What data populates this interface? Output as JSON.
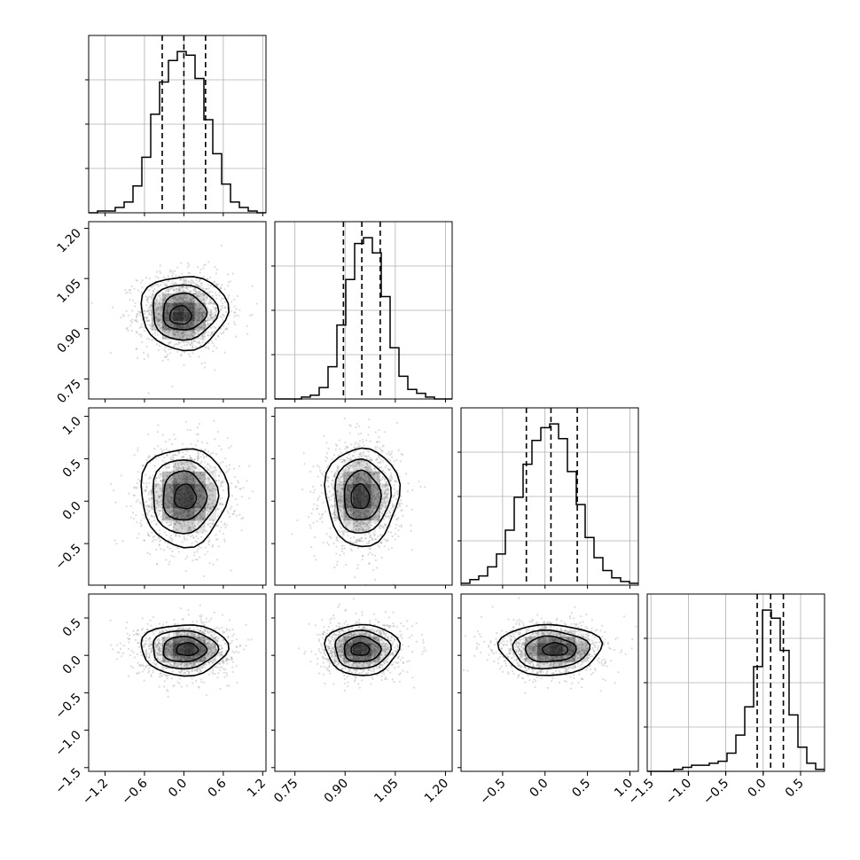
{
  "chart_data": {
    "type": "corner",
    "title": "",
    "parameters": 4,
    "axis_ranges": [
      [
        -1.45,
        1.25
      ],
      [
        0.69,
        1.22
      ],
      [
        -0.99,
        1.1
      ],
      [
        -1.55,
        0.82
      ]
    ],
    "ticks": [
      {
        "values": [
          -1.2,
          -0.6,
          0.0,
          0.6,
          1.2
        ],
        "labels": [
          "−1.2",
          "−0.6",
          "0.0",
          "0.6",
          "1.2"
        ]
      },
      {
        "values": [
          0.75,
          0.9,
          1.05,
          1.2
        ],
        "labels": [
          "0.75",
          "0.90",
          "1.05",
          "1.20"
        ]
      },
      {
        "values": [
          -0.5,
          0.0,
          0.5,
          1.0
        ],
        "labels": [
          "−0.5",
          "0.0",
          "0.5",
          "1.0"
        ]
      },
      {
        "values": [
          -1.5,
          -1.0,
          -0.5,
          0.0,
          0.5
        ],
        "labels": [
          "−1.5",
          "−1.0",
          "−0.5",
          "0.0",
          "0.5"
        ]
      }
    ],
    "histograms": [
      {
        "bin_edges": [
          -1.45,
          -1.315,
          -1.18,
          -1.045,
          -0.91,
          -0.775,
          -0.64,
          -0.505,
          -0.37,
          -0.235,
          -0.1,
          0.035,
          0.17,
          0.305,
          0.44,
          0.575,
          0.71,
          0.845,
          0.98,
          1.115,
          1.25
        ],
        "counts": [
          0,
          1,
          1,
          3,
          6,
          15,
          31,
          55,
          73,
          85,
          90,
          88,
          75,
          52,
          33,
          16,
          6,
          3,
          1,
          0
        ],
        "quantiles": [
          -0.33,
          0.0,
          0.33
        ]
      },
      {
        "bin_edges": [
          0.69,
          0.7165,
          0.743,
          0.7695,
          0.796,
          0.8225,
          0.849,
          0.8755,
          0.902,
          0.9285,
          0.955,
          0.9815,
          1.008,
          1.0345,
          1.061,
          1.0875,
          1.114,
          1.1405,
          1.167,
          1.1935,
          1.22
        ],
        "counts": [
          0,
          0,
          0,
          1,
          2,
          6,
          17,
          39,
          63,
          82,
          85,
          77,
          54,
          27,
          12,
          5,
          3,
          1,
          0,
          0
        ],
        "quantiles": [
          0.895,
          0.95,
          1.005
        ]
      },
      {
        "bin_edges": [
          -0.99,
          -0.8855,
          -0.781,
          -0.6765,
          -0.572,
          -0.4675,
          -0.363,
          -0.2585,
          -0.154,
          -0.0495,
          0.055,
          0.1595,
          0.264,
          0.3685,
          0.473,
          0.5775,
          0.682,
          0.7865,
          0.891,
          0.9955,
          1.1
        ],
        "counts": [
          1,
          3,
          5,
          10,
          17,
          30,
          48,
          66,
          79,
          86,
          88,
          80,
          62,
          44,
          26,
          15,
          8,
          4,
          2,
          1
        ],
        "quantiles": [
          -0.22,
          0.07,
          0.38
        ]
      },
      {
        "bin_edges": [
          -1.55,
          -1.4315,
          -1.313,
          -1.1945,
          -1.076,
          -0.9575,
          -0.839,
          -0.7205,
          -0.602,
          -0.4835,
          -0.365,
          -0.2465,
          -0.128,
          -0.0095,
          0.109,
          0.2275,
          0.346,
          0.4645,
          0.583,
          0.7015,
          0.82
        ],
        "counts": [
          0,
          0,
          0,
          1,
          2,
          3,
          3,
          4,
          5,
          9,
          18,
          32,
          52,
          80,
          76,
          60,
          28,
          12,
          4,
          1
        ],
        "quantiles": [
          -0.08,
          0.1,
          0.27
        ]
      }
    ],
    "pairs": [
      {
        "row": 1,
        "col": 0,
        "center": [
          0.0,
          0.95
        ],
        "spread": [
          0.33,
          0.055
        ],
        "peak": [
          -0.05,
          0.94
        ]
      },
      {
        "row": 2,
        "col": 0,
        "center": [
          0.0,
          0.06
        ],
        "spread": [
          0.33,
          0.29
        ],
        "peak": [
          0.02,
          0.05
        ]
      },
      {
        "row": 2,
        "col": 1,
        "center": [
          0.95,
          0.06
        ],
        "spread": [
          0.055,
          0.29
        ],
        "peak": [
          0.945,
          0.05
        ]
      },
      {
        "row": 3,
        "col": 0,
        "center": [
          0.0,
          0.08
        ],
        "spread": [
          0.33,
          0.17
        ],
        "peak": [
          0.05,
          0.08
        ]
      },
      {
        "row": 3,
        "col": 1,
        "center": [
          0.95,
          0.08
        ],
        "spread": [
          0.055,
          0.17
        ],
        "peak": [
          0.945,
          0.08
        ]
      },
      {
        "row": 3,
        "col": 2,
        "center": [
          0.06,
          0.08
        ],
        "spread": [
          0.3,
          0.17
        ],
        "peak": [
          0.12,
          0.08
        ]
      }
    ],
    "contour_levels_sigma": [
      0.5,
      1.0,
      1.5,
      2.0
    ],
    "grid": true,
    "colors": {
      "line": "#000000",
      "scatter": "#9a9a9a",
      "grid": "#b0b0b0",
      "density": "#000000"
    }
  }
}
